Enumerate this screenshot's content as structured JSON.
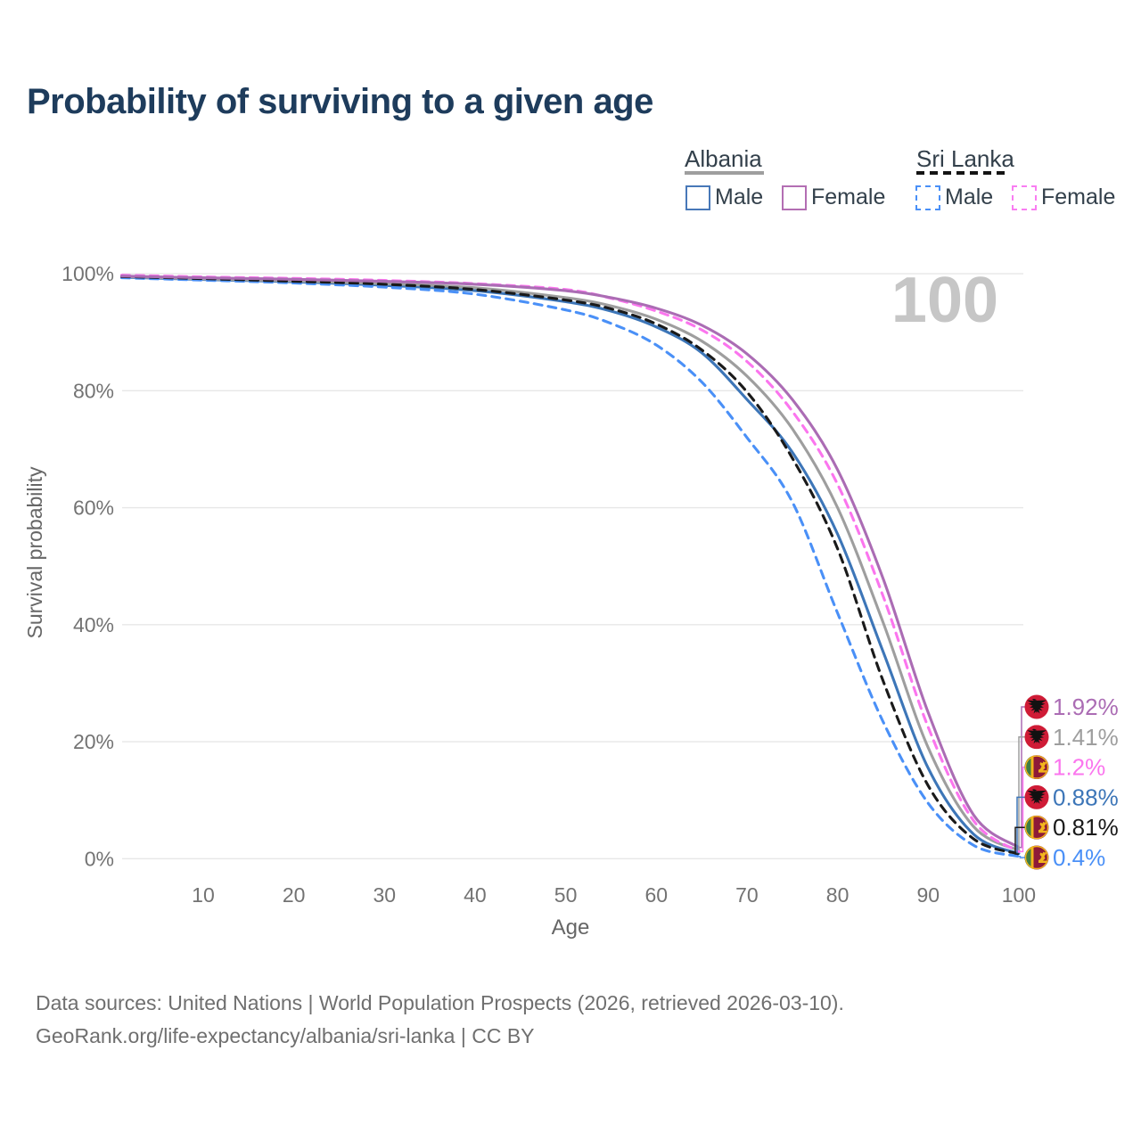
{
  "title": "Probability of surviving to a given age",
  "watermark": "100",
  "legend": {
    "groups": [
      {
        "label": "Albania",
        "line_style": "solid",
        "line_color": "#9e9e9e",
        "items": [
          {
            "label": "Male",
            "color": "#4878b8",
            "dashed": false
          },
          {
            "label": "Female",
            "color": "#b36eb3",
            "dashed": false
          }
        ]
      },
      {
        "label": "Sri Lanka",
        "line_style": "dashed",
        "line_color": "#141414",
        "items": [
          {
            "label": "Male",
            "color": "#4a90f7",
            "dashed": true
          },
          {
            "label": "Female",
            "color": "#f97df2",
            "dashed": true
          }
        ]
      }
    ]
  },
  "chart_data": {
    "type": "line",
    "xlabel": "Age",
    "ylabel": "Survival probability",
    "xlim": [
      0,
      100
    ],
    "ylim": [
      0,
      100
    ],
    "x_ticks": [
      10,
      20,
      30,
      40,
      50,
      60,
      70,
      80,
      90,
      100
    ],
    "y_ticks": [
      0,
      20,
      40,
      60,
      80,
      100
    ],
    "y_tick_labels": [
      "0%",
      "20%",
      "40%",
      "60%",
      "80%",
      "100%"
    ],
    "grid": true,
    "ages": [
      1,
      10,
      20,
      30,
      40,
      50,
      55,
      60,
      65,
      70,
      75,
      80,
      85,
      90,
      95,
      100
    ],
    "series": [
      {
        "id": "albania-male",
        "country": "Albania",
        "sex": "Male",
        "color": "#3d76b8",
        "dashed": false,
        "values": [
          99.4,
          99.0,
          98.6,
          98.0,
          97.1,
          95.2,
          93.6,
          90.9,
          86.5,
          78.5,
          69.5,
          55.5,
          35.5,
          15.5,
          4.2,
          0.88
        ],
        "end_label": "0.88%",
        "flag": "albania"
      },
      {
        "id": "albania-both",
        "country": "Albania",
        "sex": "Both",
        "color": "#9e9e9e",
        "dashed": false,
        "values": [
          99.5,
          99.1,
          98.75,
          98.3,
          97.6,
          95.9,
          94.5,
          92.2,
          88.5,
          82.5,
          73.5,
          60.0,
          40.5,
          19.0,
          5.5,
          1.41
        ],
        "end_label": "1.41%",
        "flag": "albania"
      },
      {
        "id": "sri-lanka-male",
        "country": "Sri Lanka",
        "sex": "Male",
        "color": "#4a90f7",
        "dashed": true,
        "values": [
          99.3,
          98.9,
          98.4,
          97.7,
          96.5,
          93.8,
          91.5,
          87.8,
          81.5,
          72.0,
          61.0,
          42.0,
          23.5,
          9.5,
          2.3,
          0.4
        ],
        "end_label": "0.4%",
        "flag": "sri-lanka"
      },
      {
        "id": "sri-lanka-both",
        "country": "Sri Lanka",
        "sex": "Both",
        "color": "#1a1a1a",
        "dashed": true,
        "values": [
          99.5,
          99.15,
          98.7,
          98.2,
          97.3,
          95.5,
          94.0,
          91.4,
          87.0,
          79.8,
          68.5,
          53.0,
          30.5,
          12.5,
          3.4,
          0.81
        ],
        "end_label": "0.81%",
        "flag": "sri-lanka"
      },
      {
        "id": "sri-lanka-female",
        "country": "Sri Lanka",
        "sex": "Female",
        "color": "#fb75ee",
        "dashed": true,
        "values": [
          99.75,
          99.45,
          99.2,
          98.85,
          98.3,
          97.3,
          95.8,
          93.6,
          90.4,
          85.0,
          76.5,
          64.0,
          45.0,
          22.5,
          6.5,
          1.2
        ],
        "end_label": "1.2%",
        "flag": "sri-lanka"
      },
      {
        "id": "albania-female",
        "country": "Albania",
        "sex": "Female",
        "color": "#ab6cb4",
        "dashed": false,
        "values": [
          99.6,
          99.3,
          99.05,
          98.7,
          98.2,
          97.1,
          95.9,
          94.1,
          91.2,
          86.3,
          78.5,
          66.5,
          48.0,
          25.0,
          7.5,
          1.92
        ],
        "end_label": "1.92%",
        "flag": "albania"
      }
    ]
  },
  "footer": {
    "line1": "Data sources: United Nations | World Population Prospects (2026, retrieved 2026-03-10).",
    "line2": "GeoRank.org/life-expectancy/albania/sri-lanka | CC BY"
  },
  "colors": {
    "grid": "#e7e7e7",
    "tick_label": "#737373",
    "axis_title": "#666666",
    "watermark": "#c6c6c6",
    "title": "#1e3c5c"
  }
}
